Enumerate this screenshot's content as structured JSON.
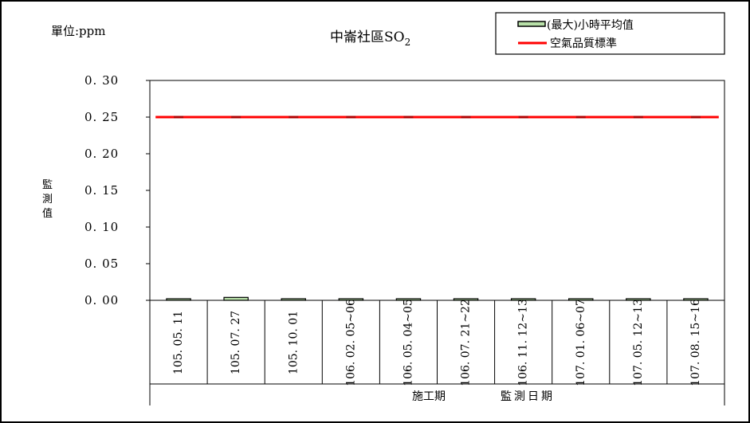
{
  "chart_data": {
    "type": "bar",
    "title": "中崙社區SO",
    "title_sub": "2",
    "unit_label": "單位:ppm",
    "ylabel": "監測值",
    "xlabel_left": "施工期",
    "xlabel_right": "監測日期",
    "ylim": [
      0,
      0.3
    ],
    "y_ticks": [
      "0.30",
      "0.25",
      "0.20",
      "0.15",
      "0.10",
      "0.05",
      "0.00"
    ],
    "grid": false,
    "legend_position": "top-right",
    "categories": [
      "105.05.11",
      "105.07.27",
      "105.10.01",
      "106.02.05~06",
      "106.05.04~05",
      "106.07.21~22",
      "106.11.12~13",
      "107.01.06~07",
      "107.05.12~13",
      "107.08.15~16"
    ],
    "series": [
      {
        "name": "(最大)小時平均值",
        "kind": "bar",
        "color": "#b8e0a8",
        "values": [
          0.0005,
          0.004,
          0.0005,
          0.0005,
          0.0005,
          0.0005,
          0.0005,
          0.0005,
          0.0005,
          0.0005
        ]
      },
      {
        "name": "空氣品質標準",
        "kind": "line",
        "color": "#ff0000",
        "values": [
          0.25,
          0.25,
          0.25,
          0.25,
          0.25,
          0.25,
          0.25,
          0.25,
          0.25,
          0.25
        ]
      }
    ]
  }
}
